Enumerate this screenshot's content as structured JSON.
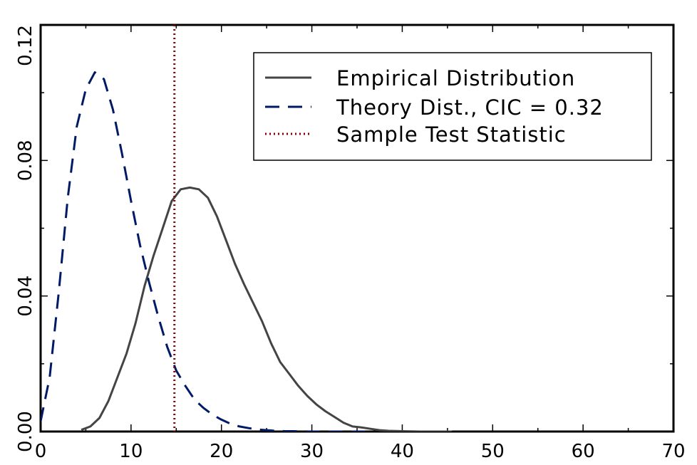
{
  "chart_data": {
    "type": "line",
    "xlim": [
      0,
      70
    ],
    "ylim": [
      0,
      0.12
    ],
    "x_ticks": [
      0,
      10,
      20,
      30,
      40,
      50,
      60,
      70
    ],
    "y_ticks": [
      0,
      0.04,
      0.08,
      0.12
    ],
    "x_tick_labels": [
      "0",
      "10",
      "20",
      "30",
      "40",
      "50",
      "60",
      "70"
    ],
    "y_tick_labels": [
      "0.00",
      "0.04",
      "0.08",
      "0.12"
    ],
    "grid": false,
    "legend_position": "top-right",
    "series": [
      {
        "name": "Empirical Distribution",
        "style": "solid",
        "color": "#444444",
        "x": [
          4.5,
          5.5,
          6.5,
          7.5,
          8.5,
          9.5,
          10.5,
          11.5,
          12.5,
          13.5,
          14.5,
          15.5,
          16.5,
          17.5,
          18.5,
          19.5,
          20.5,
          21.5,
          22.5,
          23.5,
          24.5,
          25.5,
          26.5,
          27.5,
          28.5,
          29.5,
          30.5,
          31.5,
          32.5,
          33.5,
          34.5,
          35.5,
          36.5,
          37.5,
          38.5,
          40,
          42,
          45.5
        ],
        "y": [
          0.0005,
          0.0015,
          0.004,
          0.009,
          0.016,
          0.023,
          0.032,
          0.043,
          0.052,
          0.06,
          0.068,
          0.0715,
          0.072,
          0.0715,
          0.069,
          0.0635,
          0.0565,
          0.0495,
          0.0435,
          0.038,
          0.0325,
          0.026,
          0.0205,
          0.017,
          0.0135,
          0.0105,
          0.008,
          0.006,
          0.0043,
          0.0026,
          0.0015,
          0.0012,
          0.0008,
          0.0004,
          0.0002,
          0.0001,
          0.0,
          0.0
        ]
      },
      {
        "name": "Theory Dist., CIC = 0.32",
        "style": "dashed",
        "color": "#001a66",
        "x": [
          0,
          1,
          2,
          3,
          4,
          5,
          6,
          7,
          8,
          9,
          10,
          11,
          12,
          13,
          14,
          15,
          16,
          17,
          18,
          19,
          20,
          21,
          22,
          23,
          24,
          25,
          26,
          27,
          28,
          30,
          32,
          34,
          36
        ],
        "y": [
          0.003,
          0.016,
          0.041,
          0.069,
          0.09,
          0.101,
          0.106,
          0.104,
          0.095,
          0.082,
          0.068,
          0.055,
          0.044,
          0.034,
          0.025,
          0.018,
          0.0135,
          0.0095,
          0.007,
          0.005,
          0.0035,
          0.0023,
          0.0015,
          0.001,
          0.0006,
          0.0004,
          0.0002,
          0.0001,
          0.0001,
          0.0,
          0.0,
          0.0,
          0.0
        ]
      }
    ],
    "vline": {
      "name": "Sample Test Statistic",
      "style": "dotted",
      "color": "#8b0000",
      "x": 14.8
    }
  }
}
